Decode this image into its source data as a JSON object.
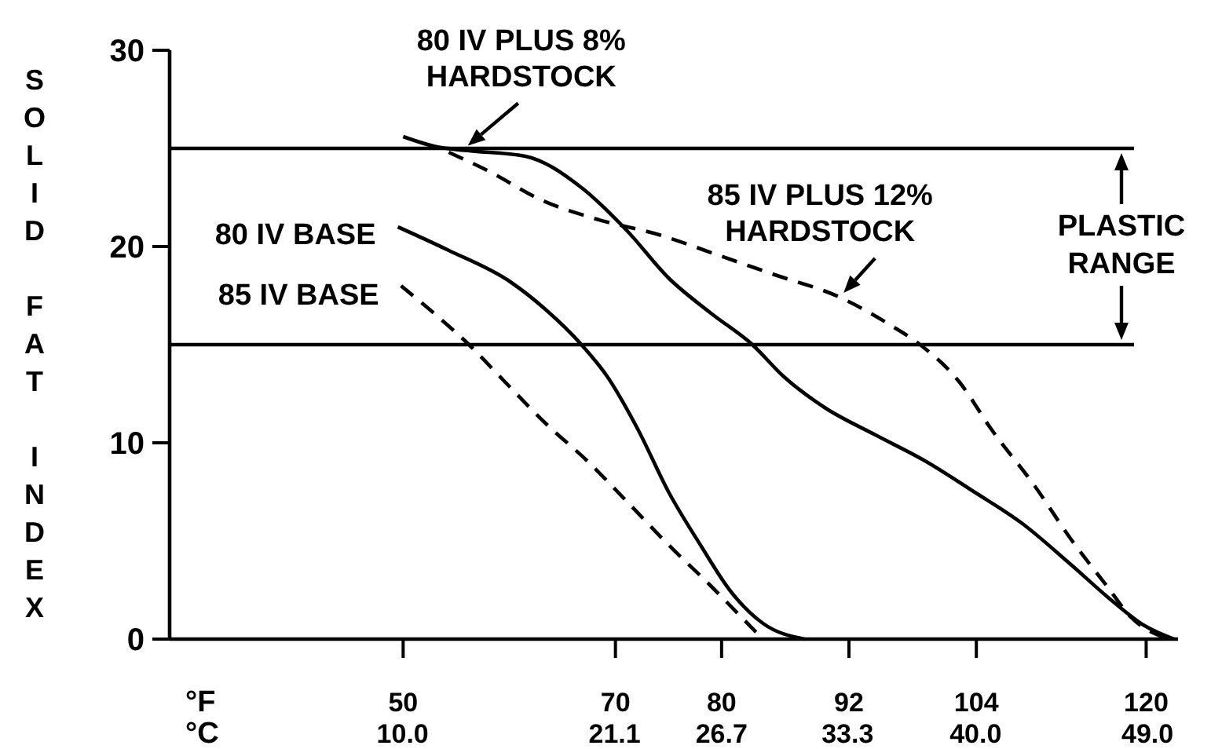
{
  "chart_data": {
    "type": "line",
    "xlabel": "°F",
    "x2label": "°C",
    "ylabel": "SOLID FAT INDEX",
    "xlim": [
      28,
      123
    ],
    "xticks": [
      50,
      70,
      80,
      92,
      104,
      120
    ],
    "x2lim": [
      -2.2,
      50.6
    ],
    "x2ticks": [
      {
        "value": 10,
        "label": "10.0"
      },
      21.1,
      26.7,
      33.3,
      {
        "value": 40,
        "label": "40.0"
      },
      {
        "value": 49,
        "label": "49.0"
      }
    ],
    "ylim": [
      0,
      30
    ],
    "yticks": [
      0,
      10,
      20,
      30
    ],
    "ref_lines": [
      {
        "axis": "y",
        "value": 25,
        "color": "#000000"
      },
      {
        "axis": "y",
        "value": 15,
        "color": "#000000"
      }
    ],
    "annotations": [
      "PLASTIC RANGE"
    ],
    "series": [
      {
        "name": "80 IV PLUS 8% HARDSTOCK",
        "color": "#000000",
        "line_style": "solid",
        "x": [
          50,
          53,
          55.8,
          61.5,
          66.8,
          71.1,
          75.0,
          79.0,
          82.9,
          85.8,
          89.7,
          94.5,
          99.1,
          103.8,
          108.3,
          112.9,
          116.9,
          119.8,
          122.6
        ],
        "values": [
          25.6,
          25.1,
          24.9,
          24.6,
          23.0,
          20.8,
          18.4,
          16.6,
          15.0,
          13.4,
          11.8,
          10.4,
          9.1,
          7.5,
          5.9,
          3.8,
          1.9,
          0.7,
          0
        ]
      },
      {
        "name": "85 IV PLUS 12% HARDSTOCK",
        "color": "#000000",
        "line_style": "dashed",
        "x": [
          54.3,
          58.2,
          62.9,
          68.2,
          74.1,
          80.0,
          84.8,
          91.2,
          95.9,
          98.7,
          102.4,
          105.4,
          109.5,
          112.9,
          116.3,
          118.6,
          122.1
        ],
        "values": [
          24.8,
          23.8,
          22.4,
          21.4,
          20.6,
          19.5,
          18.6,
          17.4,
          16.0,
          15.0,
          13.1,
          10.7,
          7.8,
          5.1,
          2.7,
          1.1,
          0
        ]
      },
      {
        "name": "80 IV BASE",
        "color": "#000000",
        "line_style": "solid",
        "x": [
          49.5,
          54.3,
          60.1,
          63.4,
          66.8,
          69.2,
          72.1,
          75.0,
          78.0,
          80.9,
          83.9,
          87.8
        ],
        "values": [
          21.0,
          19.8,
          18.2,
          16.8,
          15.0,
          13.4,
          10.7,
          7.5,
          4.8,
          2.4,
          0.8,
          0
        ]
      },
      {
        "name": "85 IV BASE",
        "color": "#000000",
        "line_style": "dashed",
        "x": [
          49.8,
          52.9,
          56.2,
          59.6,
          63.4,
          67.3,
          71.1,
          75.0,
          79.0,
          81.9,
          83.9
        ],
        "values": [
          18.0,
          16.6,
          15.0,
          13.1,
          11.0,
          9.1,
          7.0,
          4.8,
          2.7,
          1.1,
          0
        ]
      }
    ]
  }
}
